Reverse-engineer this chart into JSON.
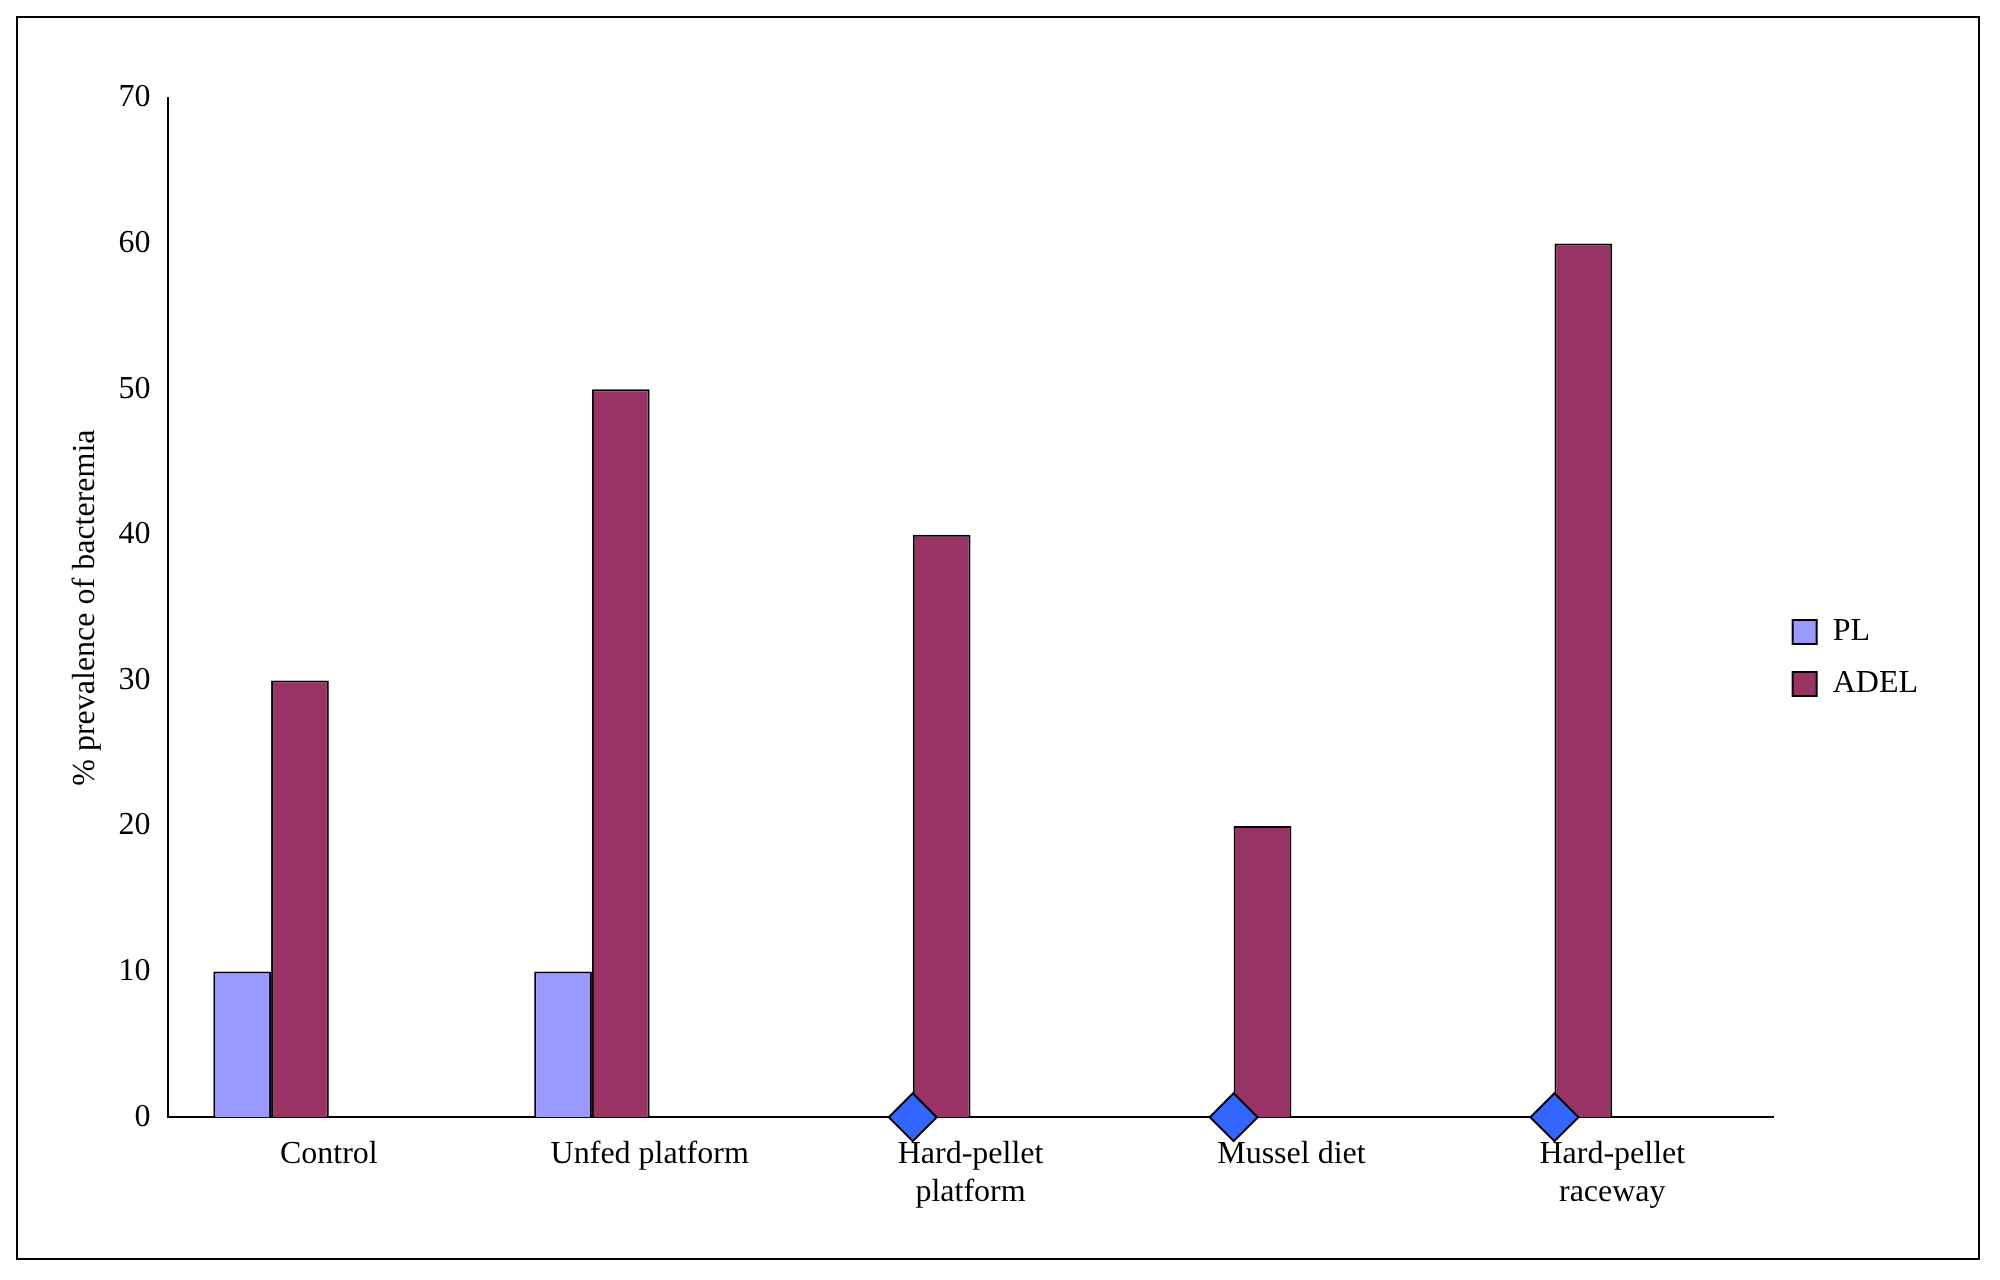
{
  "chart_data": {
    "type": "bar",
    "ylabel": "% prevalence of bacteremia",
    "categories": [
      "Control",
      "Unfed platform",
      "Hard-pellet platform",
      "Mussel diet",
      "Hard-pellet raceway"
    ],
    "series": [
      {
        "name": "PL",
        "color": "#9999ff",
        "values": [
          10,
          10,
          null,
          null,
          null
        ]
      },
      {
        "name": "ADEL",
        "color": "#993366",
        "values": [
          30,
          50,
          40,
          20,
          60
        ]
      },
      {
        "type": "scatter",
        "color": "#3366ff",
        "marker": "diamond",
        "x": [
          "Hard-pellet platform",
          "Mussel diet",
          "Hard-pellet raceway"
        ],
        "values": [
          0,
          0,
          0
        ]
      }
    ],
    "ylim": [
      0,
      70
    ],
    "yticks": [
      0,
      10,
      20,
      30,
      40,
      50,
      60,
      70
    ],
    "grid": false,
    "legend": "right"
  }
}
